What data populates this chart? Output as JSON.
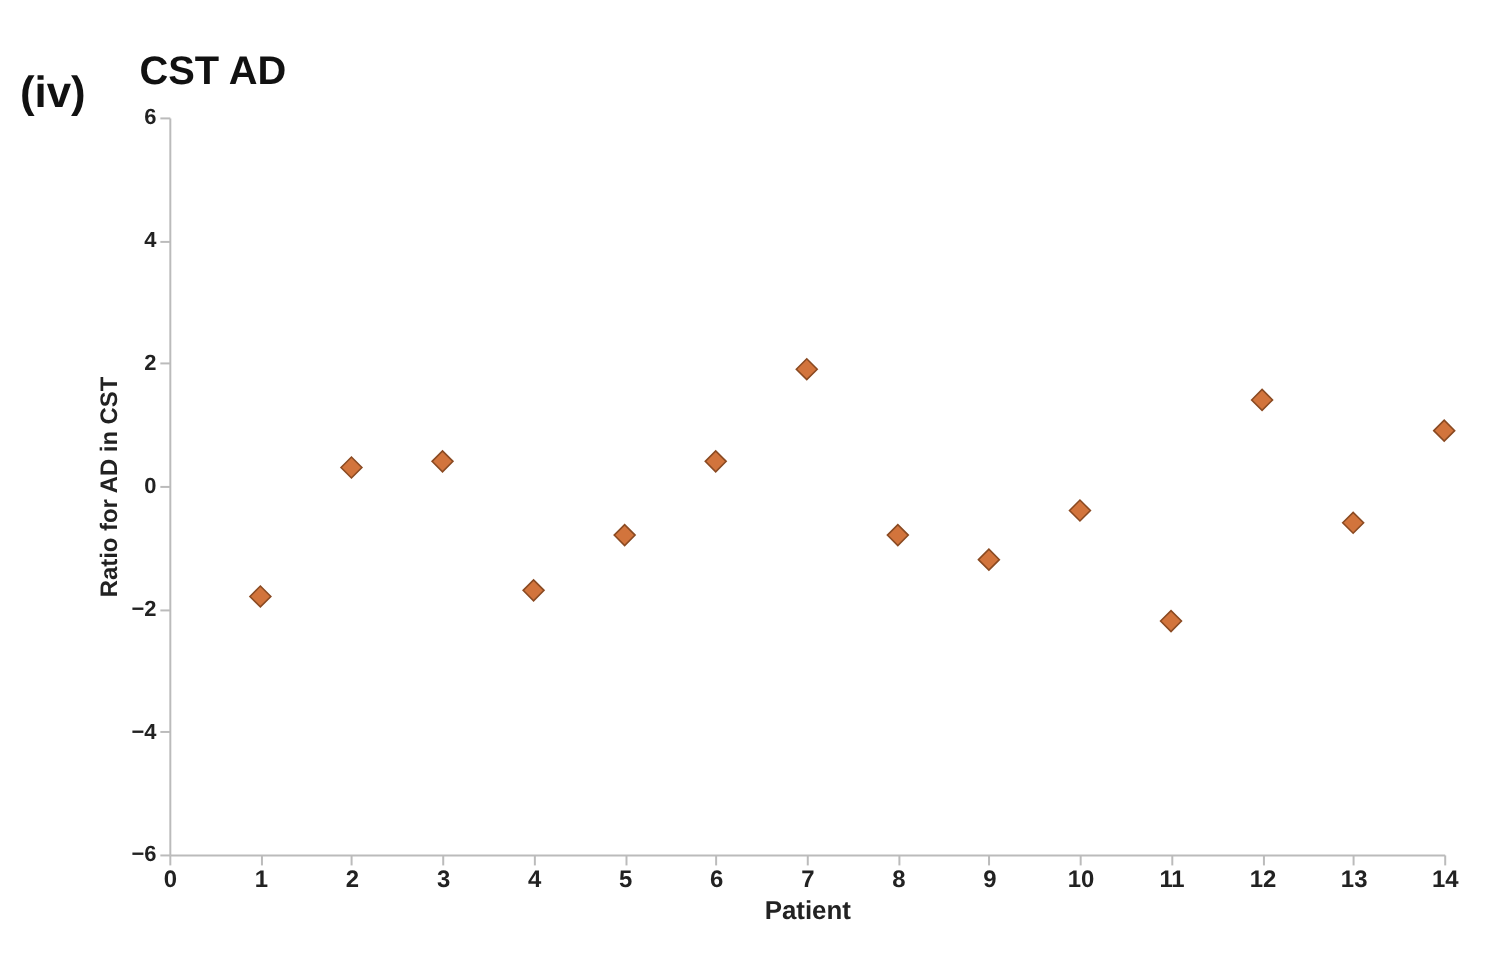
{
  "chart_data": {
    "type": "scatter",
    "title": "CST AD",
    "xlabel": "Patient",
    "ylabel": "Ratio for AD in CST",
    "annotations": [
      "(iv)"
    ],
    "x": [
      1,
      2,
      3,
      4,
      5,
      6,
      7,
      8,
      9,
      10,
      11,
      12,
      13,
      14
    ],
    "series": [
      {
        "color": "#d2743c",
        "values": [
          -1.8,
          0.3,
          0.4,
          -1.7,
          -0.8,
          0.4,
          1.9,
          -0.8,
          -1.2,
          -0.4,
          -2.2,
          1.4,
          -0.6,
          0.9
        ]
      }
    ],
    "xlim": [
      0,
      14
    ],
    "xticks": [
      0,
      1,
      2,
      3,
      4,
      5,
      6,
      7,
      8,
      9,
      10,
      11,
      12,
      13,
      14
    ],
    "ylim": [
      -6,
      6
    ],
    "yticks": [
      -6,
      -4,
      -2,
      0,
      2,
      4,
      6
    ],
    "marker": "diamond",
    "grid": false
  }
}
